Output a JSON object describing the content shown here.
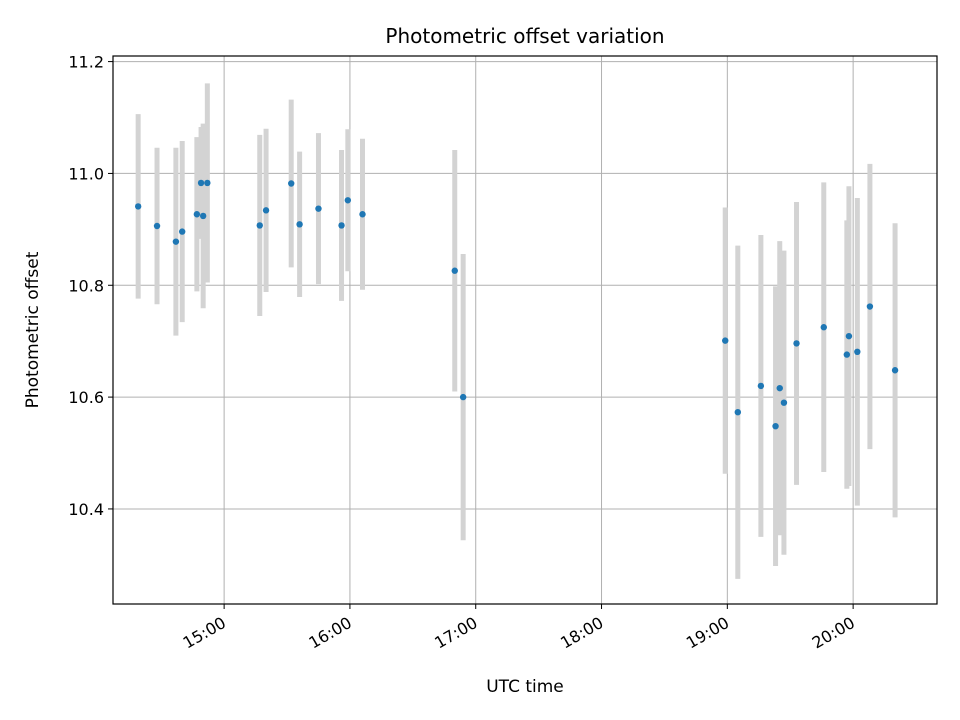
{
  "chart_data": {
    "type": "scatter",
    "title": "Photometric offset variation",
    "xlabel": "UTC time",
    "ylabel": "Photometric offset",
    "xlim": [
      "14:07",
      "20:40"
    ],
    "ylim": [
      10.23,
      11.21
    ],
    "xticks": [
      "15:00",
      "16:00",
      "17:00",
      "18:00",
      "19:00",
      "20:00"
    ],
    "yticks": [
      "10.4",
      "10.6",
      "10.8",
      "11.0",
      "11.2"
    ],
    "grid": true,
    "colors": {
      "points": "#1f77b4",
      "errorbars": "#d3d3d3",
      "grid": "#b0b0b0"
    },
    "points": [
      {
        "x": "14:19",
        "y": 10.941,
        "err": 0.165
      },
      {
        "x": "14:28",
        "y": 10.906,
        "err": 0.14
      },
      {
        "x": "14:37",
        "y": 10.878,
        "err": 0.168
      },
      {
        "x": "14:40",
        "y": 10.896,
        "err": 0.162
      },
      {
        "x": "14:47",
        "y": 10.927,
        "err": 0.138
      },
      {
        "x": "14:49",
        "y": 10.983,
        "err": 0.1
      },
      {
        "x": "14:50",
        "y": 10.924,
        "err": 0.165
      },
      {
        "x": "14:52",
        "y": 10.983,
        "err": 0.178
      },
      {
        "x": "15:17",
        "y": 10.907,
        "err": 0.162
      },
      {
        "x": "15:20",
        "y": 10.934,
        "err": 0.146
      },
      {
        "x": "15:32",
        "y": 10.982,
        "err": 0.15
      },
      {
        "x": "15:36",
        "y": 10.909,
        "err": 0.13
      },
      {
        "x": "15:45",
        "y": 10.937,
        "err": 0.135
      },
      {
        "x": "15:56",
        "y": 10.907,
        "err": 0.135
      },
      {
        "x": "15:59",
        "y": 10.952,
        "err": 0.127
      },
      {
        "x": "16:06",
        "y": 10.927,
        "err": 0.135
      },
      {
        "x": "16:50",
        "y": 10.826,
        "err": 0.216
      },
      {
        "x": "16:54",
        "y": 10.6,
        "err": 0.256
      },
      {
        "x": "18:59",
        "y": 10.701,
        "err": 0.238
      },
      {
        "x": "19:05",
        "y": 10.573,
        "err": 0.298
      },
      {
        "x": "19:16",
        "y": 10.62,
        "err": 0.27
      },
      {
        "x": "19:23",
        "y": 10.548,
        "err": 0.25
      },
      {
        "x": "19:25",
        "y": 10.616,
        "err": 0.263
      },
      {
        "x": "19:27",
        "y": 10.59,
        "err": 0.272
      },
      {
        "x": "19:33",
        "y": 10.696,
        "err": 0.253
      },
      {
        "x": "19:46",
        "y": 10.725,
        "err": 0.259
      },
      {
        "x": "19:57",
        "y": 10.676,
        "err": 0.24
      },
      {
        "x": "19:58",
        "y": 10.709,
        "err": 0.268
      },
      {
        "x": "20:02",
        "y": 10.681,
        "err": 0.275
      },
      {
        "x": "20:08",
        "y": 10.762,
        "err": 0.255
      },
      {
        "x": "20:20",
        "y": 10.648,
        "err": 0.263
      }
    ]
  }
}
